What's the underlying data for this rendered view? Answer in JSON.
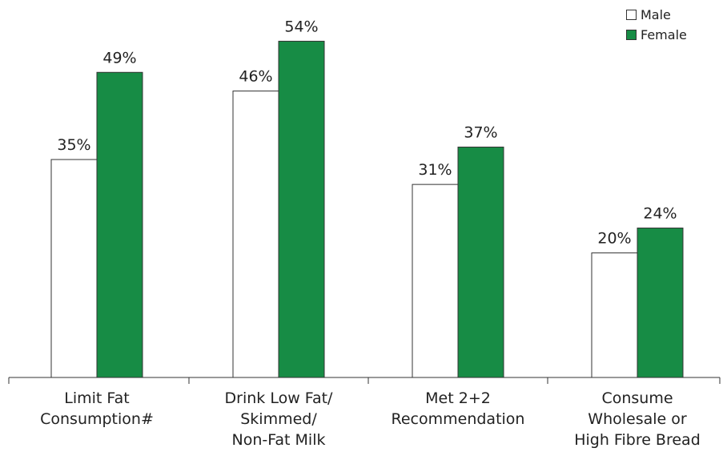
{
  "chart_data": {
    "type": "bar",
    "categories": [
      [
        "Limit Fat",
        "Consumption#"
      ],
      [
        "Drink Low Fat/",
        "Skimmed/",
        "Non-Fat Milk"
      ],
      [
        "Met 2+2",
        "Recommendation"
      ],
      [
        "Consume",
        "Wholesale or",
        "High Fibre Bread"
      ]
    ],
    "series": [
      {
        "name": "Male",
        "values": [
          35,
          46,
          31,
          20
        ],
        "labels": [
          "35%",
          "46%",
          "31%",
          "20%"
        ],
        "color": "#ffffff"
      },
      {
        "name": "Female",
        "values": [
          49,
          54,
          37,
          24
        ],
        "labels": [
          "49%",
          "54%",
          "37%",
          "24%"
        ],
        "color": "#178c45"
      }
    ],
    "ylim": [
      0,
      60
    ],
    "legend_position": "top-right",
    "grid": false
  }
}
